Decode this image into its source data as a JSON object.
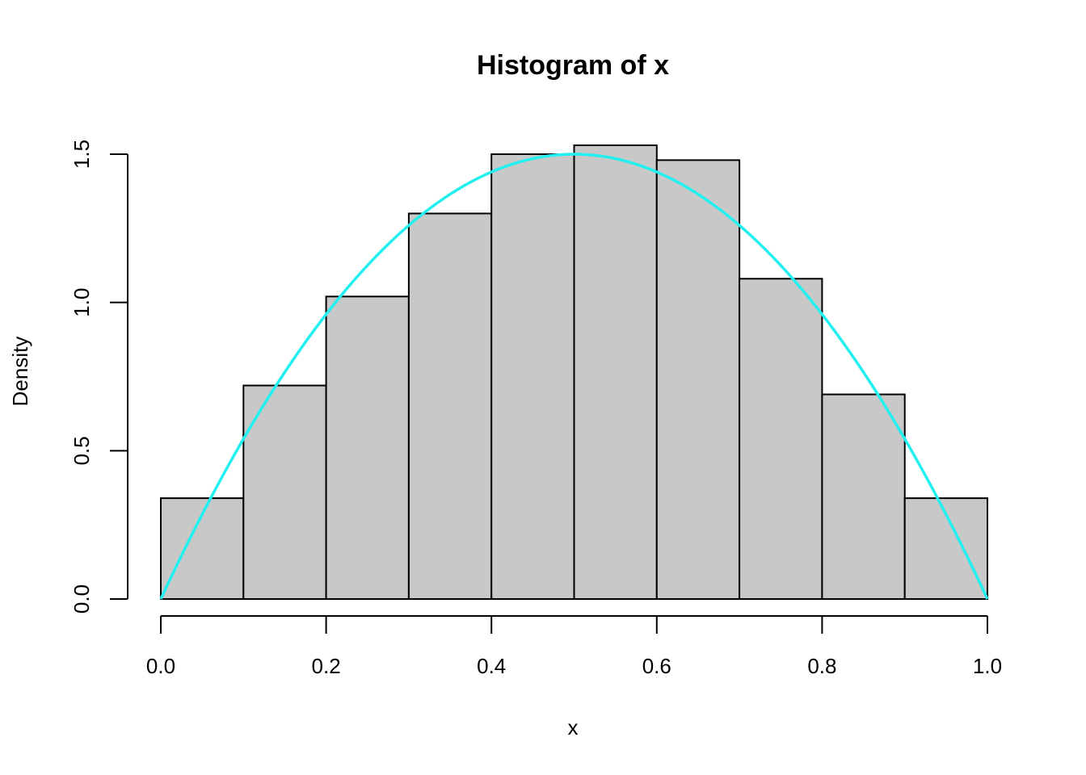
{
  "chart_data": {
    "type": "histogram",
    "title": "Histogram of x",
    "xlabel": "x",
    "ylabel": "Density",
    "xlim": [
      0,
      1
    ],
    "ylim": [
      0,
      1.5
    ],
    "bins": [
      {
        "start": 0.0,
        "end": 0.1,
        "density": 0.34
      },
      {
        "start": 0.1,
        "end": 0.2,
        "density": 0.72
      },
      {
        "start": 0.2,
        "end": 0.3,
        "density": 1.02
      },
      {
        "start": 0.3,
        "end": 0.4,
        "density": 1.3
      },
      {
        "start": 0.4,
        "end": 0.5,
        "density": 1.5
      },
      {
        "start": 0.5,
        "end": 0.6,
        "density": 1.53
      },
      {
        "start": 0.6,
        "end": 0.7,
        "density": 1.48
      },
      {
        "start": 0.7,
        "end": 0.8,
        "density": 1.08
      },
      {
        "start": 0.8,
        "end": 0.9,
        "density": 0.69
      },
      {
        "start": 0.9,
        "end": 1.0,
        "density": 0.34
      }
    ],
    "x_ticks": [
      0.0,
      0.2,
      0.4,
      0.6,
      0.8,
      1.0
    ],
    "x_tick_labels": [
      "0.0",
      "0.2",
      "0.4",
      "0.6",
      "0.8",
      "1.0"
    ],
    "y_ticks": [
      0.0,
      0.5,
      1.0,
      1.5
    ],
    "y_tick_labels": [
      "0.0",
      "0.5",
      "1.0",
      "1.5"
    ],
    "density_curve": {
      "formula": "6x(1-x)",
      "color": "#22f0f0"
    },
    "bar_fill": "#c8c8c8",
    "grid": false
  }
}
